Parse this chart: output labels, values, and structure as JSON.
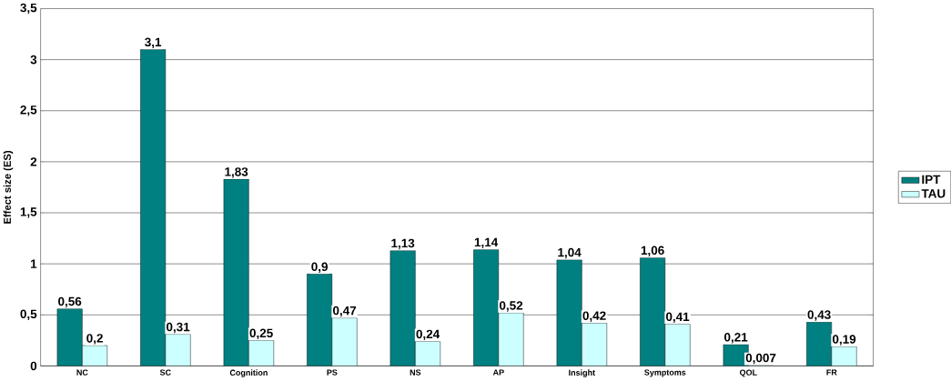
{
  "chart_data": {
    "type": "bar",
    "ylabel": "Effect size (ES)",
    "categories": [
      "NC",
      "SC",
      "Cognition",
      "PS",
      "NS",
      "AP",
      "Insight",
      "Symptoms",
      "QOL",
      "FR"
    ],
    "series": [
      {
        "name": "IPT",
        "color": "#008080",
        "values": [
          0.56,
          3.1,
          1.83,
          0.9,
          1.13,
          1.14,
          1.04,
          1.06,
          0.21,
          0.43
        ],
        "value_labels": [
          "0,56",
          "3,1",
          "1,83",
          "0,9",
          "1,13",
          "1,14",
          "1,04",
          "1,06",
          "0,21",
          "0,43"
        ]
      },
      {
        "name": "TAU",
        "color": "#ccffff",
        "values": [
          0.2,
          0.31,
          0.25,
          0.47,
          0.24,
          0.52,
          0.42,
          0.41,
          0.007,
          0.19
        ],
        "value_labels": [
          "0,2",
          "0,31",
          "0,25",
          "0,47",
          "0,24",
          "0,52",
          "0,42",
          "0,41",
          "0,007",
          "0,19"
        ]
      }
    ],
    "ylim": [
      0,
      3.5
    ],
    "yticks": [
      0,
      {
        "value": 0.5,
        "label": "0,5"
      },
      1,
      {
        "value": 1.5,
        "label": "1,5"
      },
      2,
      {
        "value": 2.5,
        "label": "2,5"
      },
      3,
      {
        "value": 3.5,
        "label": "3,5"
      }
    ],
    "grid": "y",
    "legend": "right"
  }
}
